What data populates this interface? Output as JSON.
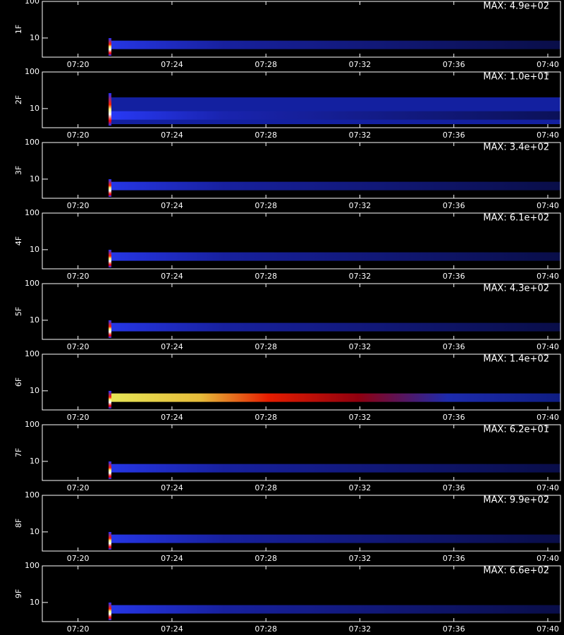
{
  "chart_data": [
    {
      "type": "heatmap",
      "ylabel": "1F",
      "annotation": "MAX: 4.9e+02",
      "xlim": [
        438.48,
        460.54
      ],
      "xticks": [
        {
          "value": 440,
          "label": "07:20"
        },
        {
          "value": 444,
          "label": "07:24"
        },
        {
          "value": 448,
          "label": "07:28"
        },
        {
          "value": 452,
          "label": "07:32"
        },
        {
          "value": 456,
          "label": "07:36"
        },
        {
          "value": 460,
          "label": "07:40"
        }
      ],
      "ylim": [
        3,
        100
      ],
      "yticks": [
        10,
        100
      ],
      "log_y": true
    },
    {
      "type": "heatmap",
      "ylabel": "2F",
      "annotation": "MAX: 1.0e+01",
      "xlim": [
        438.48,
        460.54
      ],
      "xticks": [
        {
          "value": 440,
          "label": "07:20"
        },
        {
          "value": 444,
          "label": "07:24"
        },
        {
          "value": 448,
          "label": "07:28"
        },
        {
          "value": 452,
          "label": "07:32"
        },
        {
          "value": 456,
          "label": "07:36"
        },
        {
          "value": 460,
          "label": "07:40"
        }
      ],
      "ylim": [
        3,
        100
      ],
      "yticks": [
        10,
        100
      ],
      "log_y": true
    },
    {
      "type": "heatmap",
      "ylabel": "3F",
      "annotation": "MAX: 3.4e+02",
      "xlim": [
        438.48,
        460.54
      ],
      "xticks": [
        {
          "value": 440,
          "label": "07:20"
        },
        {
          "value": 444,
          "label": "07:24"
        },
        {
          "value": 448,
          "label": "07:28"
        },
        {
          "value": 452,
          "label": "07:32"
        },
        {
          "value": 456,
          "label": "07:36"
        },
        {
          "value": 460,
          "label": "07:40"
        }
      ],
      "ylim": [
        3,
        100
      ],
      "yticks": [
        10,
        100
      ],
      "log_y": true
    },
    {
      "type": "heatmap",
      "ylabel": "4F",
      "annotation": "MAX: 6.1e+02",
      "xlim": [
        438.48,
        460.54
      ],
      "xticks": [
        {
          "value": 440,
          "label": "07:20"
        },
        {
          "value": 444,
          "label": "07:24"
        },
        {
          "value": 448,
          "label": "07:28"
        },
        {
          "value": 452,
          "label": "07:32"
        },
        {
          "value": 456,
          "label": "07:36"
        },
        {
          "value": 460,
          "label": "07:40"
        }
      ],
      "ylim": [
        3,
        100
      ],
      "yticks": [
        10,
        100
      ],
      "log_y": true
    },
    {
      "type": "heatmap",
      "ylabel": "5F",
      "annotation": "MAX: 4.3e+02",
      "xlim": [
        438.48,
        460.54
      ],
      "xticks": [
        {
          "value": 440,
          "label": "07:20"
        },
        {
          "value": 444,
          "label": "07:24"
        },
        {
          "value": 448,
          "label": "07:28"
        },
        {
          "value": 452,
          "label": "07:32"
        },
        {
          "value": 456,
          "label": "07:36"
        },
        {
          "value": 460,
          "label": "07:40"
        }
      ],
      "ylim": [
        3,
        100
      ],
      "yticks": [
        10,
        100
      ],
      "log_y": true
    },
    {
      "type": "heatmap",
      "ylabel": "6F",
      "annotation": "MAX: 1.4e+02",
      "xlim": [
        438.48,
        460.54
      ],
      "xticks": [
        {
          "value": 440,
          "label": "07:20"
        },
        {
          "value": 444,
          "label": "07:24"
        },
        {
          "value": 448,
          "label": "07:28"
        },
        {
          "value": 452,
          "label": "07:32"
        },
        {
          "value": 456,
          "label": "07:36"
        },
        {
          "value": 460,
          "label": "07:40"
        }
      ],
      "ylim": [
        3,
        100
      ],
      "yticks": [
        10,
        100
      ],
      "log_y": true
    },
    {
      "type": "heatmap",
      "ylabel": "7F",
      "annotation": "MAX: 6.2e+01",
      "xlim": [
        438.48,
        460.54
      ],
      "xticks": [
        {
          "value": 440,
          "label": "07:20"
        },
        {
          "value": 444,
          "label": "07:24"
        },
        {
          "value": 448,
          "label": "07:28"
        },
        {
          "value": 452,
          "label": "07:32"
        },
        {
          "value": 456,
          "label": "07:36"
        },
        {
          "value": 460,
          "label": "07:40"
        }
      ],
      "ylim": [
        3,
        100
      ],
      "yticks": [
        10,
        100
      ],
      "log_y": true
    },
    {
      "type": "heatmap",
      "ylabel": "8F",
      "annotation": "MAX: 9.9e+02",
      "xlim": [
        438.48,
        460.54
      ],
      "xticks": [
        {
          "value": 440,
          "label": "07:20"
        },
        {
          "value": 444,
          "label": "07:24"
        },
        {
          "value": 448,
          "label": "07:28"
        },
        {
          "value": 452,
          "label": "07:32"
        },
        {
          "value": 456,
          "label": "07:36"
        },
        {
          "value": 460,
          "label": "07:40"
        }
      ],
      "ylim": [
        3,
        100
      ],
      "yticks": [
        10,
        100
      ],
      "log_y": true
    },
    {
      "type": "heatmap",
      "ylabel": "9F",
      "annotation": "MAX: 6.6e+02",
      "xlim": [
        438.48,
        460.54
      ],
      "xticks": [
        {
          "value": 440,
          "label": "07:20"
        },
        {
          "value": 444,
          "label": "07:24"
        },
        {
          "value": 448,
          "label": "07:28"
        },
        {
          "value": 452,
          "label": "07:32"
        },
        {
          "value": 456,
          "label": "07:36"
        },
        {
          "value": 460,
          "label": "07:40"
        }
      ],
      "ylim": [
        3,
        100
      ],
      "yticks": [
        10,
        100
      ],
      "log_y": true
    }
  ]
}
